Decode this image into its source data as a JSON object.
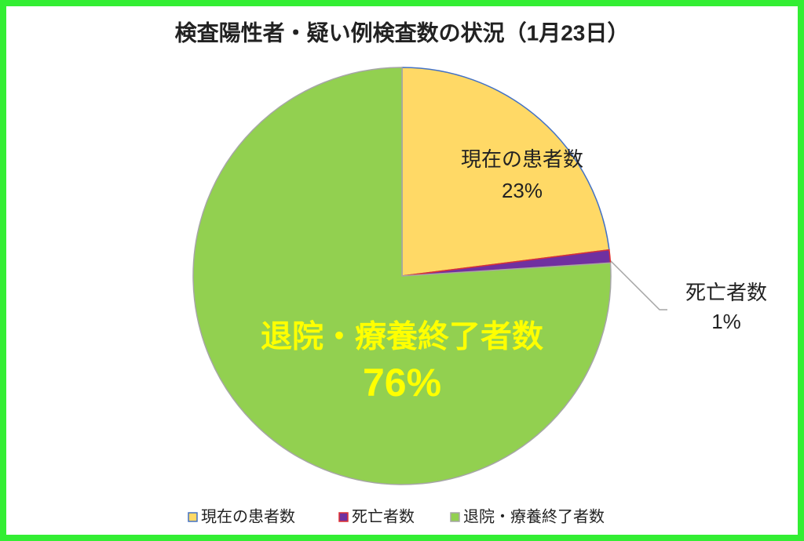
{
  "chart_data": {
    "type": "pie",
    "title": "検査陽性者・疑い例検査数の状況（1月23日）",
    "categories": [
      "現在の患者数",
      "死亡者数",
      "退院・療養終了者数"
    ],
    "values": [
      23,
      1,
      76
    ],
    "value_labels": [
      "23%",
      "1%",
      "76%"
    ],
    "colors": [
      "#ffd966",
      "#7030a0",
      "#92d050"
    ],
    "legend": "bottom"
  }
}
